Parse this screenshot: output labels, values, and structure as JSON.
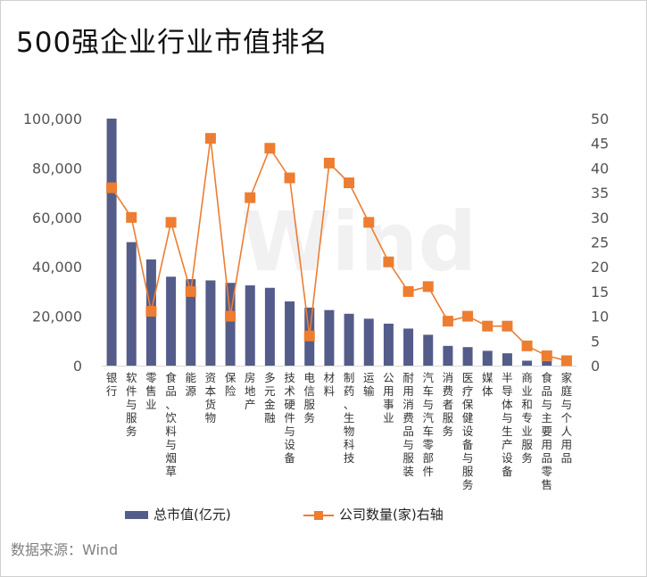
{
  "title": "500强企业行业市值排名",
  "watermark": "Wind",
  "source": "数据来源：Wind",
  "colors": {
    "bar": "#545c8a",
    "line": "#ed7d31",
    "axis_text": "#555555"
  },
  "chart_data": {
    "type": "bar",
    "categories": [
      "银行",
      "软件与服务",
      "零售业",
      "食品、饮料与烟草",
      "能源",
      "资本货物",
      "保险",
      "房地产",
      "多元金融",
      "技术硬件与设备",
      "电信服务",
      "材料",
      "制药、生物科技",
      "运输",
      "公用事业",
      "耐用消费品与服装",
      "汽车与汽车零部件",
      "消费者服务",
      "医疗保健设备与服务",
      "媒体",
      "半导体与生产设备",
      "商业和专业服务",
      "食品与主要用品零售",
      "家庭与个人用品"
    ],
    "series": [
      {
        "name": "总市值(亿元)",
        "type": "bar",
        "axis": "left",
        "values": [
          100000,
          50000,
          43000,
          36000,
          35000,
          34500,
          33500,
          32500,
          31500,
          26000,
          23500,
          22500,
          21000,
          19000,
          17000,
          15000,
          12500,
          8000,
          7500,
          6000,
          5000,
          2000,
          1800,
          1300
        ]
      },
      {
        "name": "公司数量(家)右轴",
        "type": "line",
        "axis": "right",
        "values": [
          36,
          30,
          11,
          29,
          15,
          46,
          10,
          34,
          44,
          38,
          6,
          41,
          37,
          29,
          21,
          15,
          16,
          9,
          10,
          8,
          8,
          4,
          2,
          1
        ]
      }
    ],
    "y_left": {
      "ticks": [
        "0",
        "20,000",
        "40,000",
        "60,000",
        "80,000",
        "100,000"
      ],
      "ylim": [
        0,
        100000
      ]
    },
    "y_right": {
      "ticks": [
        "0",
        "5",
        "10",
        "15",
        "20",
        "25",
        "30",
        "35",
        "40",
        "45",
        "50"
      ],
      "ylim": [
        0,
        50
      ]
    },
    "legend": "bottom",
    "grid": false
  }
}
